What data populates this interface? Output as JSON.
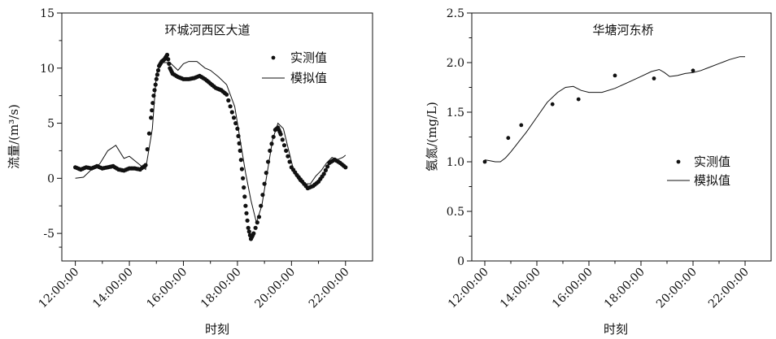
{
  "chart_data": [
    {
      "type": "line",
      "title": "环城河西区大道",
      "xlabel": "时刻",
      "ylabel": "流量/(m³/s)",
      "x_ticks": [
        "12:00:00",
        "14:00:00",
        "16:00:00",
        "18:00:00",
        "20:00:00",
        "22:00:00"
      ],
      "x_range_hours": [
        11.5,
        23.0
      ],
      "y_ticks": [
        "-5",
        "0",
        "5",
        "10",
        "15"
      ],
      "ylim": [
        -7.5,
        15
      ],
      "legend": {
        "position": "top-right",
        "observed": "实测值",
        "simulated": "模拟值"
      },
      "series": [
        {
          "name": "实测值",
          "style": "dots",
          "x": [
            12.0,
            12.2,
            12.4,
            12.6,
            12.8,
            13.0,
            13.2,
            13.4,
            13.6,
            13.8,
            14.0,
            14.2,
            14.4,
            14.6,
            14.8,
            14.9,
            15.0,
            15.1,
            15.2,
            15.3,
            15.4,
            15.5,
            15.6,
            15.8,
            16.0,
            16.2,
            16.4,
            16.6,
            16.8,
            17.0,
            17.2,
            17.4,
            17.6,
            17.8,
            18.0,
            18.1,
            18.2,
            18.3,
            18.4,
            18.5,
            18.6,
            18.8,
            19.0,
            19.2,
            19.4,
            19.5,
            19.6,
            19.8,
            20.0,
            20.2,
            20.4,
            20.6,
            20.8,
            21.0,
            21.2,
            21.4,
            21.6,
            21.8,
            22.0
          ],
          "y": [
            1.0,
            0.8,
            1.0,
            0.9,
            1.1,
            0.9,
            1.0,
            1.1,
            0.8,
            0.7,
            0.9,
            0.9,
            0.8,
            1.2,
            5.5,
            7.5,
            9.0,
            10.2,
            10.6,
            10.8,
            11.2,
            10.0,
            9.5,
            9.2,
            9.0,
            9.0,
            9.1,
            9.3,
            9.0,
            8.6,
            8.2,
            8.0,
            7.6,
            6.0,
            4.5,
            2.5,
            0.0,
            -2.5,
            -4.5,
            -5.5,
            -5.0,
            -3.5,
            -0.5,
            2.5,
            4.4,
            4.6,
            4.0,
            2.5,
            1.0,
            0.3,
            -0.3,
            -0.9,
            -0.7,
            -0.3,
            0.4,
            1.4,
            1.7,
            1.4,
            1.0
          ]
        },
        {
          "name": "模拟值",
          "style": "line",
          "x": [
            12.0,
            12.3,
            12.6,
            12.9,
            13.2,
            13.5,
            13.8,
            14.0,
            14.3,
            14.6,
            14.85,
            15.0,
            15.2,
            15.5,
            15.8,
            16.0,
            16.2,
            16.5,
            16.8,
            17.0,
            17.3,
            17.6,
            17.9,
            18.1,
            18.3,
            18.5,
            18.7,
            18.9,
            19.1,
            19.3,
            19.5,
            19.7,
            19.9,
            20.1,
            20.3,
            20.5,
            20.7,
            20.9,
            21.1,
            21.3,
            21.5,
            21.7,
            21.9,
            22.0
          ],
          "y": [
            0.0,
            0.1,
            0.8,
            1.3,
            2.5,
            3.0,
            1.8,
            2.0,
            1.4,
            0.8,
            4.5,
            9.5,
            10.5,
            10.5,
            9.8,
            10.4,
            10.6,
            10.6,
            10.0,
            9.8,
            9.2,
            8.5,
            6.5,
            3.5,
            0.5,
            -2.0,
            -4.0,
            -2.5,
            0.5,
            3.5,
            5.0,
            4.5,
            2.5,
            0.5,
            -0.3,
            -0.5,
            -0.5,
            0.2,
            0.7,
            1.4,
            1.9,
            1.7,
            1.9,
            2.1
          ]
        }
      ]
    },
    {
      "type": "line",
      "title": "华塘河东桥",
      "xlabel": "时刻",
      "ylabel": "氨氮/(mg/L)",
      "x_ticks": [
        "12:00:00",
        "14:00:00",
        "16:00:00",
        "18:00:00",
        "20:00:00",
        "22:00:00"
      ],
      "x_range_hours": [
        11.5,
        23.0
      ],
      "y_ticks": [
        "0",
        "0.5",
        "1.0",
        "1.5",
        "2.0",
        "2.5"
      ],
      "ylim": [
        0,
        2.5
      ],
      "legend": {
        "position": "center-right",
        "observed": "实测值",
        "simulated": "模拟值"
      },
      "series": [
        {
          "name": "实测值",
          "style": "dots",
          "x": [
            12.0,
            12.9,
            13.4,
            14.6,
            15.6,
            17.0,
            18.5,
            20.0
          ],
          "y": [
            1.0,
            1.24,
            1.37,
            1.58,
            1.63,
            1.87,
            1.84,
            1.92
          ]
        },
        {
          "name": "模拟值",
          "style": "line",
          "x": [
            12.0,
            12.2,
            12.4,
            12.6,
            12.8,
            13.0,
            13.3,
            13.6,
            14.0,
            14.4,
            14.8,
            15.1,
            15.4,
            15.7,
            16.0,
            16.5,
            17.0,
            17.5,
            18.0,
            18.4,
            18.7,
            18.9,
            19.1,
            19.4,
            19.7,
            20.0,
            20.3,
            20.6,
            21.0,
            21.4,
            21.8,
            22.0
          ],
          "y": [
            1.02,
            1.01,
            1.0,
            1.0,
            1.04,
            1.1,
            1.2,
            1.3,
            1.45,
            1.6,
            1.7,
            1.75,
            1.76,
            1.72,
            1.7,
            1.7,
            1.74,
            1.8,
            1.86,
            1.91,
            1.93,
            1.9,
            1.86,
            1.87,
            1.89,
            1.9,
            1.92,
            1.95,
            1.99,
            2.03,
            2.06,
            2.06
          ]
        }
      ]
    }
  ]
}
